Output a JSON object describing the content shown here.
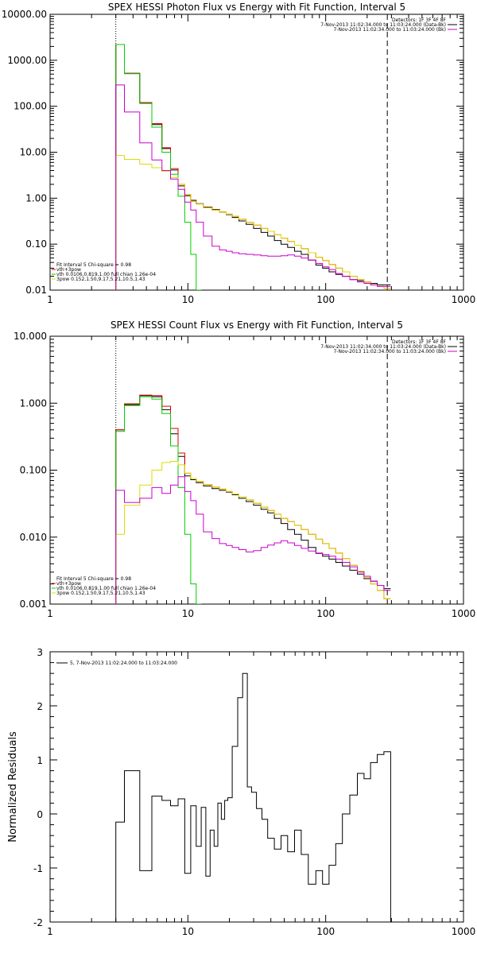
{
  "chart_data": [
    {
      "type": "line",
      "title": "SPEX HESSI Photon Flux vs Energy with Fit Function, Interval 5",
      "xscale": "log",
      "yscale": "log",
      "xlim": [
        1,
        1000
      ],
      "ylim": [
        0.01,
        10000
      ],
      "xticks": [
        "1",
        "10",
        "100",
        "1000"
      ],
      "yticks": [
        "0.01",
        "0.10",
        "1.00",
        "10.00",
        "100.00",
        "1000.00",
        "10000.00"
      ],
      "vlines": [
        {
          "x": 3,
          "style": "dotted"
        },
        {
          "x": 280,
          "style": "dashed"
        }
      ],
      "legend_top": [
        "Detectors: 1F 3F 4F 8F",
        "7-Nov-2013 11:02:34.000 to 11:03:24.000 (Data-Bk)",
        "7-Nov-2013 11:02:34.000 to 11:03:24.000 (Bk)"
      ],
      "legend_bottom": [
        "Fit Interval 5   Chi-square = 0.98",
        "vth+3pow",
        "vth 0.0106,0.819,1.00  full chian 1.26e-04",
        "3pow 0.152,1.50,9.17,5.21,10.5,1.43"
      ],
      "series": [
        {
          "name": "Data-Bk",
          "color": "#000000",
          "x": [
            3,
            4,
            5,
            6,
            7,
            8,
            9,
            10,
            11,
            12,
            14,
            16,
            18,
            20,
            22,
            25,
            28,
            32,
            36,
            40,
            45,
            50,
            56,
            63,
            70,
            80,
            90,
            100,
            112,
            125,
            140,
            160,
            180,
            200,
            224,
            250,
            280
          ],
          "y": [
            2200,
            520,
            120,
            40,
            12,
            4.1,
            1.85,
            1.13,
            0.9,
            0.76,
            0.64,
            0.57,
            0.5,
            0.44,
            0.38,
            0.32,
            0.27,
            0.22,
            0.18,
            0.15,
            0.12,
            0.1,
            0.085,
            0.07,
            0.06,
            0.045,
            0.035,
            0.03,
            0.025,
            0.022,
            0.02,
            0.017,
            0.016,
            0.015,
            0.014,
            0.013,
            0.013
          ]
        },
        {
          "name": "vth+3pow",
          "color": "#dd0000",
          "x": [
            3,
            4,
            5,
            6,
            7,
            8,
            9,
            10,
            11,
            12,
            14,
            16,
            18,
            20,
            22,
            25,
            28,
            32,
            36,
            40,
            45,
            50,
            56,
            63,
            70,
            80,
            90,
            100,
            112,
            125,
            140,
            160,
            180,
            200,
            224,
            250,
            280
          ],
          "y": [
            2200,
            520,
            120,
            42,
            12.5,
            4.4,
            2,
            1.2,
            0.85,
            0.75,
            0.62,
            0.55,
            0.5,
            0.45,
            0.4,
            0.35,
            0.3,
            0.26,
            0.22,
            0.19,
            0.16,
            0.135,
            0.115,
            0.095,
            0.08,
            0.065,
            0.052,
            0.044,
            0.036,
            0.03,
            0.025,
            0.02,
            0.017,
            0.015,
            0.013,
            0.012,
            0.011
          ]
        },
        {
          "name": "vth",
          "color": "#00cc00",
          "x": [
            3,
            4,
            5,
            6,
            7,
            8,
            9,
            10,
            11,
            12
          ],
          "y": [
            2200,
            510,
            115,
            35,
            10,
            3.3,
            1.1,
            0.3,
            0.06,
            0.01
          ]
        },
        {
          "name": "3pow",
          "color": "#dddd00",
          "x": [
            3,
            4,
            5,
            6,
            7,
            8,
            9,
            10,
            11,
            12,
            14,
            16,
            18,
            20,
            22,
            25,
            28,
            32,
            36,
            40,
            45,
            50,
            56,
            63,
            70,
            80,
            90,
            100,
            112,
            125,
            140,
            160,
            180,
            200,
            224,
            250,
            280
          ],
          "y": [
            8.5,
            7,
            5.5,
            4.6,
            3.8,
            2.8,
            2,
            1.2,
            0.85,
            0.75,
            0.62,
            0.55,
            0.5,
            0.45,
            0.4,
            0.35,
            0.3,
            0.26,
            0.22,
            0.19,
            0.16,
            0.135,
            0.115,
            0.095,
            0.08,
            0.065,
            0.052,
            0.044,
            0.036,
            0.03,
            0.025,
            0.02,
            0.017,
            0.015,
            0.013,
            0.012,
            0.011
          ]
        },
        {
          "name": "Bk",
          "color": "#cc00cc",
          "x": [
            3,
            4,
            5,
            6,
            7,
            8,
            9,
            10,
            11,
            12,
            14,
            16,
            18,
            20,
            22,
            25,
            28,
            32,
            36,
            40,
            45,
            50,
            56,
            63,
            70,
            80,
            90,
            100,
            112,
            125,
            140,
            160,
            180,
            200,
            224,
            250,
            280
          ],
          "y": [
            290,
            75,
            16,
            6.8,
            4,
            2.6,
            1.55,
            0.82,
            0.55,
            0.3,
            0.15,
            0.09,
            0.075,
            0.07,
            0.065,
            0.062,
            0.06,
            0.058,
            0.056,
            0.055,
            0.055,
            0.056,
            0.058,
            0.055,
            0.05,
            0.045,
            0.038,
            0.032,
            0.028,
            0.023,
            0.02,
            0.017,
            0.015,
            0.014,
            0.013,
            0.012,
            0.012
          ]
        }
      ]
    },
    {
      "type": "line",
      "title": "SPEX HESSI Count Flux vs Energy with Fit Function, Interval 5",
      "xscale": "log",
      "yscale": "log",
      "xlim": [
        1,
        1000
      ],
      "ylim": [
        0.001,
        10
      ],
      "xticks": [
        "1",
        "10",
        "100",
        "1000"
      ],
      "yticks": [
        "0.001",
        "0.010",
        "0.100",
        "1.000",
        "10.000"
      ],
      "vlines": [
        {
          "x": 3,
          "style": "dotted"
        },
        {
          "x": 280,
          "style": "dashed"
        }
      ],
      "legend_top": [
        "Detectors: 1F 3F 4F 8F",
        "7-Nov-2013 11:02:34.000 to 11:03:24.000 (Data-Bk)",
        "7-Nov-2013 11:02:34.000 to 11:03:24.000 (Bk)"
      ],
      "legend_bottom": [
        "Fit Interval 5   Chi-square = 0.98",
        "vth+3pow",
        "vth 0.0106,0.819,1.00  full chian 1.26e-04",
        "3pow 0.152,1.50,9.17,5.21,10.5,1.43"
      ],
      "series": [
        {
          "name": "Data-Bk",
          "color": "#000000",
          "x": [
            3,
            4,
            5,
            6,
            7,
            8,
            9,
            10,
            11,
            12,
            14,
            16,
            18,
            20,
            22,
            25,
            28,
            32,
            36,
            40,
            45,
            50,
            56,
            63,
            70,
            80,
            90,
            100,
            112,
            125,
            140,
            160,
            180,
            200,
            224,
            250,
            280
          ],
          "y": [
            0.4,
            0.95,
            1.3,
            1.25,
            0.8,
            0.35,
            0.16,
            0.082,
            0.072,
            0.065,
            0.058,
            0.053,
            0.05,
            0.047,
            0.043,
            0.038,
            0.034,
            0.03,
            0.026,
            0.023,
            0.019,
            0.016,
            0.013,
            0.011,
            0.009,
            0.007,
            0.0057,
            0.0052,
            0.0047,
            0.0042,
            0.0037,
            0.0032,
            0.0028,
            0.0024,
            0.0022,
            0.0019,
            0.0017
          ]
        },
        {
          "name": "vth+3pow",
          "color": "#dd0000",
          "x": [
            3,
            4,
            5,
            6,
            7,
            8,
            9,
            10,
            11,
            12,
            14,
            16,
            18,
            20,
            22,
            25,
            28,
            32,
            36,
            40,
            45,
            50,
            56,
            63,
            70,
            80,
            90,
            100,
            112,
            125,
            140,
            160,
            180,
            200,
            224,
            250,
            280
          ],
          "y": [
            0.4,
            0.98,
            1.32,
            1.3,
            0.9,
            0.42,
            0.18,
            0.09,
            0.075,
            0.068,
            0.061,
            0.056,
            0.052,
            0.048,
            0.044,
            0.04,
            0.036,
            0.032,
            0.028,
            0.025,
            0.022,
            0.019,
            0.017,
            0.015,
            0.013,
            0.011,
            0.0093,
            0.008,
            0.0068,
            0.0058,
            0.0048,
            0.0038,
            0.0031,
            0.0025,
            0.002,
            0.0016,
            0.0012
          ]
        },
        {
          "name": "vth",
          "color": "#00cc00",
          "x": [
            3,
            4,
            5,
            6,
            7,
            8,
            9,
            10,
            11,
            12
          ],
          "y": [
            0.38,
            0.92,
            1.25,
            1.15,
            0.7,
            0.23,
            0.055,
            0.011,
            0.002,
            0.001
          ]
        },
        {
          "name": "3pow",
          "color": "#dddd00",
          "x": [
            3,
            4,
            5,
            6,
            7,
            8,
            9,
            10,
            11,
            12,
            14,
            16,
            18,
            20,
            22,
            25,
            28,
            32,
            36,
            40,
            45,
            50,
            56,
            63,
            70,
            80,
            90,
            100,
            112,
            125,
            140,
            160,
            180,
            200,
            224,
            250,
            280
          ],
          "y": [
            0.011,
            0.03,
            0.06,
            0.1,
            0.13,
            0.135,
            0.12,
            0.09,
            0.075,
            0.068,
            0.061,
            0.056,
            0.052,
            0.048,
            0.044,
            0.04,
            0.036,
            0.032,
            0.028,
            0.025,
            0.022,
            0.019,
            0.017,
            0.015,
            0.013,
            0.011,
            0.0093,
            0.008,
            0.0068,
            0.0058,
            0.0048,
            0.0038,
            0.0031,
            0.0025,
            0.002,
            0.0016,
            0.0012
          ]
        },
        {
          "name": "Bk",
          "color": "#cc00cc",
          "x": [
            3,
            4,
            5,
            6,
            7,
            8,
            9,
            10,
            11,
            12,
            14,
            16,
            18,
            20,
            22,
            25,
            28,
            32,
            36,
            40,
            45,
            50,
            56,
            63,
            70,
            80,
            90,
            100,
            112,
            125,
            140,
            160,
            180,
            200,
            224,
            250,
            280
          ],
          "y": [
            0.05,
            0.033,
            0.038,
            0.055,
            0.045,
            0.06,
            0.08,
            0.048,
            0.035,
            0.022,
            0.012,
            0.0095,
            0.008,
            0.0075,
            0.007,
            0.0065,
            0.006,
            0.0063,
            0.007,
            0.0076,
            0.0082,
            0.0088,
            0.0082,
            0.0075,
            0.0068,
            0.0062,
            0.0058,
            0.0055,
            0.0052,
            0.0047,
            0.0042,
            0.0036,
            0.003,
            0.0026,
            0.0022,
            0.0019,
            0.0016
          ]
        }
      ]
    },
    {
      "type": "line",
      "title": "",
      "xscale": "log",
      "yscale": "linear",
      "xlim": [
        1,
        1000
      ],
      "ylim": [
        -2,
        3
      ],
      "xticks": [
        "1",
        "10",
        "100",
        "1000"
      ],
      "yticks": [
        "-2",
        "-1",
        "0",
        "1",
        "2",
        "3"
      ],
      "ylabel": "Normalized Residuals",
      "legend_top": [
        "5, 7-Nov-2013 11:02:24.000 to 11:03:24.000"
      ],
      "series": [
        {
          "name": "5, 7-Nov-2013 11:02:24.000 to 11:03:24.000",
          "color": "#000000",
          "x": [
            3,
            4,
            5,
            6,
            7,
            8,
            9,
            10,
            11,
            12,
            13,
            14,
            15,
            16,
            17,
            18,
            19,
            20,
            22,
            24,
            26,
            28,
            30,
            33,
            36,
            40,
            45,
            50,
            56,
            63,
            70,
            80,
            90,
            100,
            112,
            125,
            140,
            160,
            180,
            200,
            224,
            250,
            280
          ],
          "y": [
            -0.15,
            0.8,
            -1.05,
            0.33,
            0.25,
            0.15,
            0.28,
            -1.1,
            0.15,
            -0.6,
            0.12,
            -1.15,
            -0.3,
            -0.6,
            0.2,
            -0.1,
            0.25,
            0.3,
            1.25,
            2.15,
            2.6,
            0.5,
            0.4,
            0.1,
            -0.1,
            -0.45,
            -0.65,
            -0.4,
            -0.7,
            -0.3,
            -0.75,
            -1.3,
            -1.05,
            -1.3,
            -0.95,
            -0.55,
            0,
            0.35,
            0.75,
            0.65,
            0.95,
            1.1,
            1.15
          ]
        }
      ]
    }
  ]
}
